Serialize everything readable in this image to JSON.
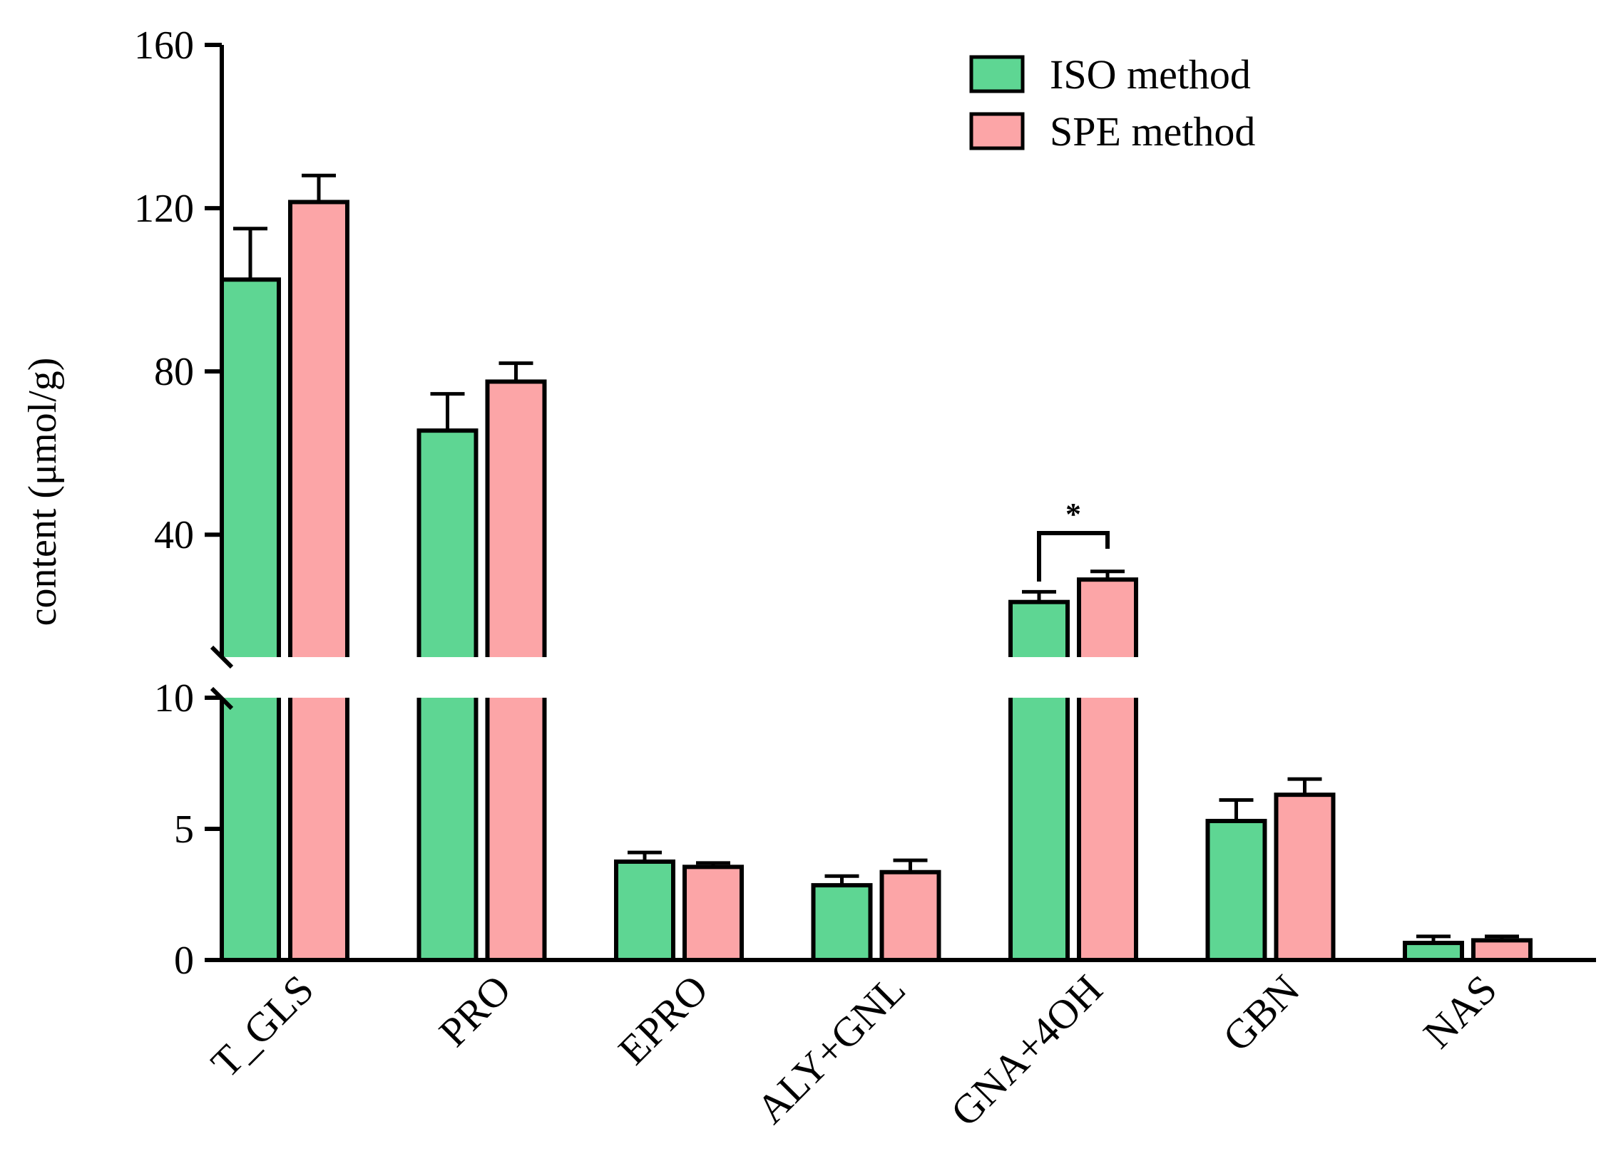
{
  "chart_data": {
    "type": "bar",
    "title": "",
    "xlabel": "",
    "ylabel": "content (μmol/g)",
    "categories": [
      "T_GLS",
      "PRO",
      "EPRO",
      "ALY+GNL",
      "GNA+4OH",
      "GBN",
      "NAS"
    ],
    "series": [
      {
        "name": "ISO method",
        "color": "#5ed693",
        "values": [
          102.5,
          65.5,
          3.75,
          2.85,
          23.5,
          5.3,
          0.65
        ],
        "errors": [
          12.5,
          9.0,
          0.35,
          0.35,
          2.5,
          0.8,
          0.25
        ]
      },
      {
        "name": "SPE method",
        "color": "#fca5a7",
        "values": [
          121.5,
          77.5,
          3.55,
          3.35,
          29.0,
          6.3,
          0.75
        ],
        "errors": [
          6.5,
          4.5,
          0.15,
          0.45,
          2.0,
          0.6,
          0.15
        ]
      }
    ],
    "y_axis": {
      "broken": true,
      "lower_segment": {
        "range": [
          0,
          10
        ],
        "ticks": [
          0,
          5,
          10
        ]
      },
      "upper_segment": {
        "range": [
          10,
          160
        ],
        "ticks": [
          40,
          80,
          120,
          160
        ]
      }
    },
    "tick_labels": [
      "0",
      "5",
      "10",
      "40",
      "80",
      "120",
      "160"
    ],
    "legend": {
      "position": "top-right",
      "entries": [
        "ISO method",
        "SPE method"
      ]
    },
    "annotations": [
      {
        "text": "*",
        "category": "GNA+4OH",
        "type": "significance-bracket"
      }
    ]
  }
}
